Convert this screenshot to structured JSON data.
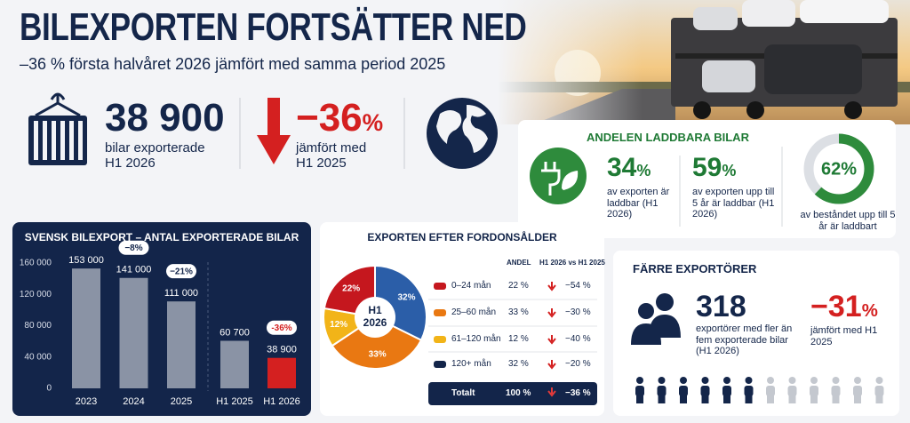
{
  "header": {
    "title": "BILEXPORTEN FORTSÄTTER NED",
    "subtitle": "–36 % första halvåret 2026 jämfört med samma period 2025"
  },
  "kpis": [
    {
      "value": "38 900",
      "label": "bilar exporterade H1 2026"
    },
    {
      "value": "−36",
      "unit": "%",
      "label": "jämfört med H1 2025"
    }
  ],
  "ev_share": {
    "title": "ANDELEN LADDBARA BILAR",
    "items": [
      {
        "value": "34",
        "unit": "%",
        "label": "av exporten är laddbar (H1 2026)"
      },
      {
        "value": "59",
        "unit": "%",
        "label": "av exporten upp till 5 år är laddbar (H1 2026)"
      }
    ],
    "donut": {
      "value": 62,
      "label": "62%",
      "text": "av beståndet upp till 5 år är laddbart",
      "color": "#2e8b3c"
    }
  },
  "chart_data": [
    {
      "type": "bar",
      "title": "SVENSK BILEXPORT – ANTAL EXPORTERADE BILAR",
      "categories": [
        "2023",
        "2024",
        "2025",
        "H1 2025",
        "H1 2026"
      ],
      "values": [
        153000,
        141000,
        111000,
        60700,
        38900
      ],
      "value_labels": [
        "153 000",
        "141 000",
        "111 000",
        "60 700",
        "38 900"
      ],
      "change_labels": [
        null,
        "−8%",
        "−21%",
        null,
        "-36%"
      ],
      "colors": [
        "#8a93a5",
        "#8a93a5",
        "#8a93a5",
        "#8a93a5",
        "#d42020"
      ],
      "ylim": [
        0,
        160000
      ],
      "yticks": [
        0,
        {
          "value": 40000,
          "label": "40 000"
        },
        {
          "value": 80000,
          "label": "80 000"
        },
        {
          "value": 120000,
          "label": "120 000"
        },
        {
          "value": 160000,
          "label": "160 000"
        }
      ]
    },
    {
      "type": "pie",
      "title": "EXPORTEN EFTER FORDONSÅLDER",
      "center_label": "H1 2026",
      "values": [
        32,
        33,
        12,
        22
      ],
      "value_labels": [
        "32%",
        "33%",
        "12%",
        "22%"
      ],
      "colors": [
        "#2b5ea8",
        "#e97812",
        "#f2b418",
        "#c5171e"
      ]
    }
  ],
  "age_table": {
    "headers": [
      "ANDEL",
      "H1 2026 vs H1 2025"
    ],
    "rows": [
      [
        "0–24 mån",
        "22 %",
        "−54 %"
      ],
      [
        "25–60 mån",
        "33 %",
        "−30 %"
      ],
      [
        "61–120 mån",
        "12 %",
        "−40 %"
      ],
      [
        "120+ mån",
        "32 %",
        "−20 %"
      ]
    ],
    "total": [
      "Totalt",
      "100 %",
      "−36 %"
    ]
  },
  "exporters": {
    "title": "FÄRRE EXPORTÖRER",
    "value": "318",
    "label": "exportörer med fler än fem exporterade bilar (H1 2026)",
    "change": "−31",
    "unit": "%",
    "change_label": "jämfört med H1 2025"
  }
}
